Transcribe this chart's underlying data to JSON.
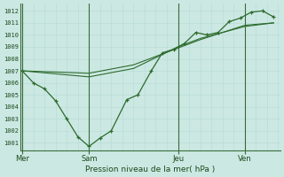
{
  "background_color": "#cce8e3",
  "grid_minor_color": "#b8ddd8",
  "grid_major_color": "#99c8c2",
  "line_color": "#2d6b2d",
  "sep_color": "#3a6b3a",
  "title": "Pression niveau de la mer( hPa )",
  "ylim": [
    1000.4,
    1012.6
  ],
  "yticks": [
    1001,
    1002,
    1003,
    1004,
    1005,
    1006,
    1007,
    1008,
    1009,
    1010,
    1011,
    1012
  ],
  "day_labels": [
    {
      "label": "Mer",
      "x": 0.0
    },
    {
      "label": "Sam",
      "x": 3.0
    },
    {
      "label": "Jeu",
      "x": 7.0
    },
    {
      "label": "Ven",
      "x": 10.0
    }
  ],
  "xlim": [
    -0.1,
    11.6
  ],
  "line1_x": [
    0,
    0.5,
    1.0,
    1.5,
    2.0,
    2.5,
    3.0,
    3.5,
    4.0,
    4.7,
    5.2,
    5.8,
    6.3,
    6.8,
    7.3,
    7.8,
    8.3,
    8.8,
    9.3,
    9.8,
    10.3,
    10.8,
    11.3
  ],
  "line1_y": [
    1007,
    1006,
    1005.5,
    1004.5,
    1003.0,
    1001.5,
    1000.7,
    1001.4,
    1002.0,
    1004.6,
    1005.0,
    1007.0,
    1008.5,
    1008.8,
    1009.3,
    1010.2,
    1010.0,
    1010.2,
    1011.1,
    1011.4,
    1011.9,
    1012.0,
    1011.5
  ],
  "line2_x": [
    0,
    3,
    5,
    7,
    8,
    9,
    10,
    11.3
  ],
  "line2_y": [
    1007,
    1006.8,
    1007.5,
    1008.9,
    1009.6,
    1010.2,
    1010.7,
    1011.0
  ],
  "line3_x": [
    0,
    3,
    5,
    7,
    8,
    9,
    10,
    11.3
  ],
  "line3_y": [
    1007,
    1006.5,
    1007.2,
    1009.0,
    1009.7,
    1010.2,
    1010.8,
    1011.0
  ],
  "ytick_fontsize": 5.0,
  "xtick_fontsize": 6.0,
  "xlabel_fontsize": 6.5
}
